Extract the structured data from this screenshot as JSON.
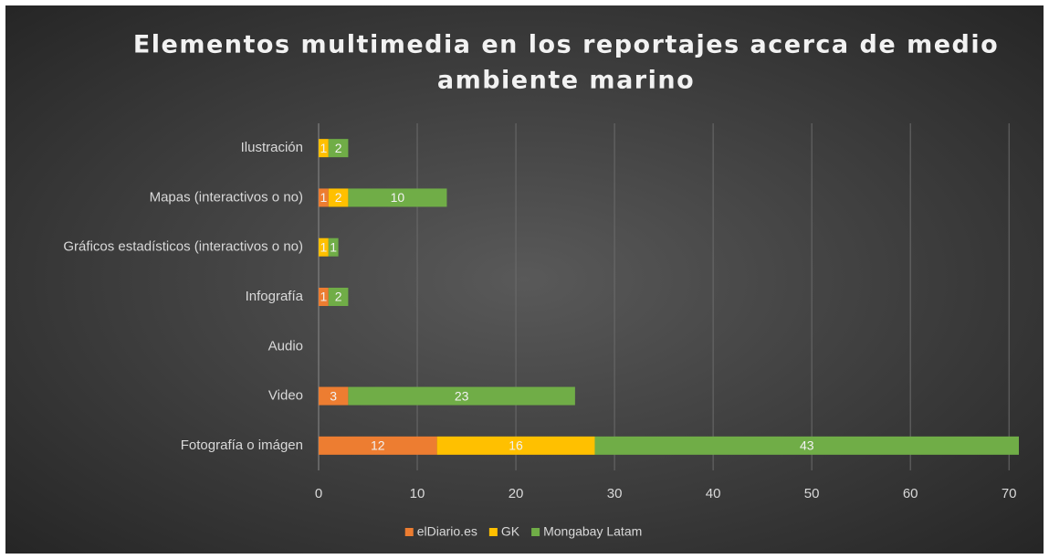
{
  "chart_data": {
    "type": "stacked-horizontal-bar",
    "title": [
      "Elementos multimedia en los reportajes acerca de medio",
      "ambiente marino"
    ],
    "categories": [
      "Ilustración",
      "Mapas (interactivos o no)",
      "Gráficos estadísticos (interactivos o no)",
      "Infografía",
      "Audio",
      "Video",
      "Fotografía o imágen"
    ],
    "series": [
      {
        "name": "elDiario.es",
        "color": "#ed7d31",
        "values": [
          null,
          1,
          null,
          1,
          null,
          3,
          12
        ]
      },
      {
        "name": "GK",
        "color": "#ffc000",
        "values": [
          1,
          2,
          1,
          null,
          null,
          null,
          16
        ]
      },
      {
        "name": "Mongabay Latam",
        "color": "#70ad47",
        "values": [
          2,
          10,
          1,
          2,
          null,
          23,
          43
        ]
      }
    ],
    "xlim": [
      0,
      71
    ],
    "xticks": [
      0,
      10,
      20,
      30,
      40,
      50,
      60,
      70
    ],
    "grid": true,
    "legend": "bottom"
  }
}
